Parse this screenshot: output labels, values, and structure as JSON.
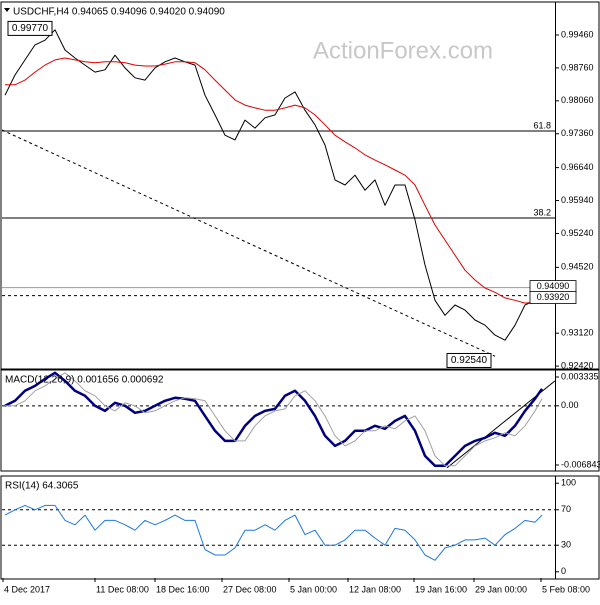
{
  "watermark": "ActionForex.com",
  "chart_data": [
    {
      "type": "line",
      "title": "USDCHF,H4 0.94065 0.94096 0.94020 0.94090",
      "x": [
        0,
        5,
        10,
        15,
        20,
        25,
        30,
        35,
        40,
        45,
        50,
        55,
        60,
        65,
        70,
        75,
        80,
        85,
        90,
        95,
        100,
        105,
        110,
        115,
        120,
        125,
        130,
        135,
        140,
        145,
        150,
        155,
        160,
        165,
        170,
        175,
        180,
        185,
        190,
        195,
        200,
        205,
        210,
        215,
        220,
        225,
        230,
        235,
        240,
        245,
        250,
        255,
        260,
        265,
        268.5
      ],
      "xlim": [
        -1.5,
        275
      ],
      "ylim": [
        0.9238,
        1.0014
      ],
      "yticks": [
        {
          "value": 0.9946,
          "label": "0.99460"
        },
        {
          "value": 0.9876,
          "label": "0.98760"
        },
        {
          "value": 0.9806,
          "label": "0.98060"
        },
        {
          "value": 0.9736,
          "label": "0.97360"
        },
        {
          "value": 0.9664,
          "label": "0.96640"
        },
        {
          "value": 0.9594,
          "label": "0.95940"
        },
        {
          "value": 0.9524,
          "label": "0.95240"
        },
        {
          "value": 0.9452,
          "label": "0.94520"
        },
        {
          "value": 0.9312,
          "label": "0.93120"
        },
        {
          "value": 0.9242,
          "label": "0.92420"
        }
      ],
      "series": [
        {
          "color": "#000000",
          "values": [
            0.9818,
            0.9861,
            0.9893,
            0.9925,
            0.9935,
            0.9957,
            0.9914,
            0.9897,
            0.9882,
            0.9867,
            0.9872,
            0.9903,
            0.9876,
            0.9855,
            0.985,
            0.9876,
            0.9889,
            0.9897,
            0.9889,
            0.9882,
            0.9818,
            0.9776,
            0.9733,
            0.9723,
            0.9765,
            0.9748,
            0.977,
            0.9776,
            0.9812,
            0.9825,
            0.9786,
            0.9755,
            0.9712,
            0.9638,
            0.9627,
            0.9648,
            0.9616,
            0.9638,
            0.9584,
            0.9627,
            0.9627,
            0.9553,
            0.9457,
            0.9382,
            0.935,
            0.9372,
            0.9361,
            0.934,
            0.9329,
            0.9308,
            0.9297,
            0.9329,
            0.9372,
            0.9382,
            0.9409
          ]
        },
        {
          "color": "#e00000",
          "values": [
            0.984,
            0.984,
            0.985,
            0.9867,
            0.9882,
            0.9893,
            0.9897,
            0.9893,
            0.9889,
            0.9887,
            0.9889,
            0.9889,
            0.9887,
            0.9882,
            0.988,
            0.988,
            0.9884,
            0.9889,
            0.9889,
            0.9887,
            0.9872,
            0.985,
            0.9829,
            0.9808,
            0.9797,
            0.9791,
            0.9786,
            0.9786,
            0.9791,
            0.9797,
            0.9791,
            0.9776,
            0.9755,
            0.9733,
            0.9719,
            0.9706,
            0.9691,
            0.968,
            0.967,
            0.9659,
            0.9648,
            0.9627,
            0.9584,
            0.9542,
            0.951,
            0.9478,
            0.9446,
            0.9425,
            0.9408,
            0.9399,
            0.9387,
            0.9382,
            0.9376,
            0.9378,
            0.9382
          ]
        }
      ],
      "levels": [
        {
          "value": 0.9742,
          "label": "61.8",
          "color": "#000000",
          "style": "solid"
        },
        {
          "value": 0.9557,
          "label": "38.2",
          "color": "#000000",
          "style": "solid"
        },
        {
          "value": 0.9409,
          "color": "#999999",
          "style": "solid"
        },
        {
          "value": 0.9392,
          "color": "#000000",
          "style": "dashed"
        }
      ],
      "price_tags": [
        {
          "value": 0.9409,
          "label": "0.94090"
        },
        {
          "value": 0.9392,
          "label": "0.93920"
        }
      ],
      "annotations": [
        {
          "value": 0.9977,
          "label": "0.99770"
        },
        {
          "value": 0.9254,
          "label": "0.92540"
        }
      ],
      "trendline": {
        "x": [
          -1.5,
          245
        ],
        "y": [
          0.9744,
          0.9263
        ],
        "style": "dashed"
      }
    },
    {
      "type": "line",
      "title": "MACD(12,26,9) 0.001656 0.000692",
      "x": [
        0,
        5,
        10,
        15,
        20,
        25,
        30,
        35,
        40,
        45,
        50,
        55,
        60,
        65,
        70,
        75,
        80,
        85,
        90,
        95,
        100,
        105,
        110,
        115,
        120,
        125,
        130,
        135,
        140,
        145,
        150,
        155,
        160,
        165,
        170,
        175,
        180,
        185,
        190,
        195,
        200,
        205,
        210,
        215,
        220,
        225,
        230,
        235,
        240,
        245,
        250,
        255,
        260,
        265,
        268.5
      ],
      "xlim": [
        -1.5,
        275
      ],
      "ylim": [
        -0.00742,
        0.00403
      ],
      "yticks": [
        0.003335,
        {
          "value": 0,
          "label": "0.00"
        },
        -0.006843
      ],
      "series": [
        {
          "color": "#000080",
          "width": 2.5,
          "values": [
            0,
            0.00058,
            0.00174,
            0.00231,
            0.00312,
            0.00382,
            0.00289,
            0.00174,
            0.00116,
            0,
            -0.00058,
            0.00035,
            0,
            -0.00081,
            -0.00058,
            0,
            0.00058,
            0.00093,
            0.00081,
            0.00058,
            -0.00116,
            -0.00289,
            -0.00405,
            -0.00405,
            -0.00231,
            -0.00116,
            -0.00058,
            -0.00035,
            0.00116,
            0.00174,
            0.00058,
            -0.00116,
            -0.00347,
            -0.00463,
            -0.00405,
            -0.00289,
            -0.00289,
            -0.00231,
            -0.00266,
            -0.00174,
            -0.00116,
            -0.00289,
            -0.00579,
            -0.00694,
            -0.00694,
            -0.00579,
            -0.00463,
            -0.00405,
            -0.0037,
            -0.00312,
            -0.00347,
            -0.00231,
            -0.00058,
            0.00081,
            0.00197
          ]
        },
        {
          "color": "#a0a0a0",
          "width": 1,
          "values": [
            0,
            0,
            0.00058,
            0.00174,
            0.00231,
            0.00312,
            0.00382,
            0.00289,
            0.00174,
            0.00116,
            0,
            -0.00058,
            0.00035,
            0,
            -0.00081,
            -0.00058,
            0,
            0.00058,
            0.00093,
            0.00081,
            0.00058,
            -0.00116,
            -0.00289,
            -0.00405,
            -0.00405,
            -0.00231,
            -0.00116,
            -0.00058,
            -0.00035,
            0.00116,
            0.00174,
            0.00058,
            -0.00116,
            -0.00347,
            -0.00463,
            -0.00405,
            -0.00289,
            -0.00289,
            -0.00231,
            -0.00266,
            -0.00174,
            -0.00116,
            -0.00289,
            -0.00579,
            -0.00694,
            -0.00694,
            -0.00579,
            -0.00463,
            -0.00405,
            -0.0037,
            -0.00312,
            -0.00347,
            -0.00231,
            -0.00058,
            0.00081
          ]
        }
      ],
      "levels": [
        {
          "value": 0,
          "color": "#000000",
          "style": "dashed"
        }
      ],
      "trendline": {
        "x": [
          221,
          275
        ],
        "y": [
          -0.00717,
          0.00289
        ],
        "style": "solid"
      }
    },
    {
      "type": "line",
      "title": "RSI(14) 64.3065",
      "x": [
        0,
        5,
        10,
        15,
        20,
        25,
        30,
        35,
        40,
        45,
        50,
        55,
        60,
        65,
        70,
        75,
        80,
        85,
        90,
        95,
        100,
        105,
        110,
        115,
        120,
        125,
        130,
        135,
        140,
        145,
        150,
        155,
        160,
        165,
        170,
        175,
        180,
        185,
        190,
        195,
        200,
        205,
        210,
        215,
        220,
        225,
        230,
        235,
        240,
        245,
        250,
        255,
        260,
        265,
        268.5
      ],
      "xlim": [
        -1.5,
        275
      ],
      "ylim": [
        -7,
        107
      ],
      "yticks": [
        100,
        70,
        30,
        0
      ],
      "xticks": [
        {
          "value": -1,
          "label": "4 Dec 2017"
        },
        {
          "value": 45,
          "label": "11 Dec 08:00"
        },
        {
          "value": 75,
          "label": "18 Dec 16:00"
        },
        {
          "value": 108.5,
          "label": "27 Dec 08:00"
        },
        {
          "value": 142,
          "label": "5 Jan 00:00"
        },
        {
          "value": 171.5,
          "label": "12 Jan 08:00"
        },
        {
          "value": 204.5,
          "label": "19 Jan 16:00"
        },
        {
          "value": 234.5,
          "label": "29 Jan 00:00"
        },
        {
          "value": 268,
          "label": "5 Feb 08:00"
        }
      ],
      "series": [
        {
          "color": "#1e78e0",
          "width": 1,
          "values": [
            64,
            70,
            75,
            70,
            75,
            75,
            58,
            53,
            64,
            47,
            58,
            58,
            53,
            47,
            58,
            53,
            58,
            64,
            58,
            58,
            25,
            19,
            19,
            27,
            47,
            47,
            53,
            47,
            58,
            64,
            42,
            47,
            30,
            30,
            36,
            47,
            47,
            38,
            30,
            49,
            47,
            36,
            19,
            13,
            27,
            30,
            36,
            36,
            38,
            30,
            42,
            49,
            58,
            56,
            64
          ]
        }
      ],
      "levels": [
        {
          "value": 70,
          "color": "#000000",
          "style": "dashed"
        },
        {
          "value": 30,
          "color": "#000000",
          "style": "dashed"
        }
      ]
    }
  ]
}
